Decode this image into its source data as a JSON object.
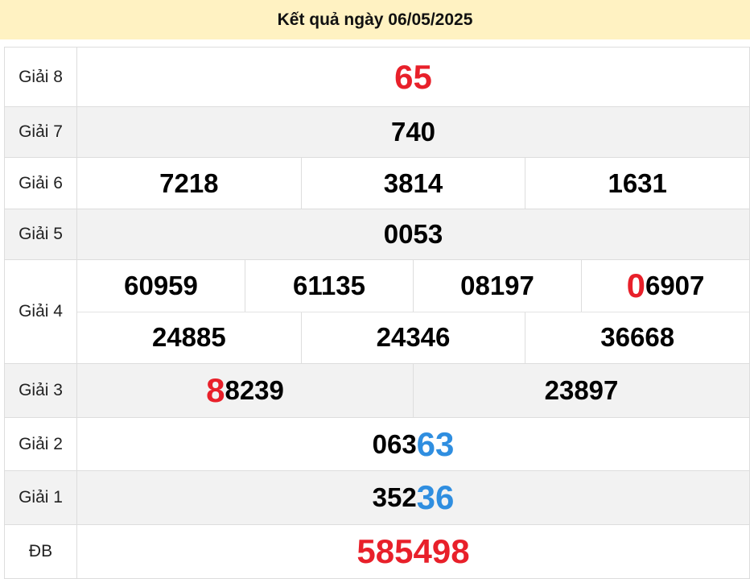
{
  "header": {
    "title": "Kết quả ngày 06/05/2025"
  },
  "colors": {
    "red": "#e8202a",
    "blue": "#2f8ee0",
    "black": "#000000",
    "header_bg": "#fff2c2"
  },
  "rows": [
    {
      "label": "Giải 8",
      "gray": false,
      "height": 73,
      "lines": [
        [
          [
            {
              "text": "65",
              "color": "red",
              "big": true
            }
          ]
        ]
      ]
    },
    {
      "label": "Giải 7",
      "gray": true,
      "height": 62,
      "lines": [
        [
          [
            {
              "text": "740",
              "color": "black"
            }
          ]
        ]
      ]
    },
    {
      "label": "Giải 6",
      "gray": false,
      "height": 63,
      "lines": [
        [
          [
            {
              "text": "7218",
              "color": "black"
            }
          ],
          [
            {
              "text": "3814",
              "color": "black"
            }
          ],
          [
            {
              "text": "1631",
              "color": "black"
            }
          ]
        ]
      ]
    },
    {
      "label": "Giải 5",
      "gray": true,
      "height": 62,
      "lines": [
        [
          [
            {
              "text": "0053",
              "color": "black"
            }
          ]
        ]
      ]
    },
    {
      "label": "Giải 4",
      "gray": false,
      "height": 128,
      "lines": [
        [
          [
            {
              "text": "60959",
              "color": "black"
            }
          ],
          [
            {
              "text": "61135",
              "color": "black"
            }
          ],
          [
            {
              "text": "08197",
              "color": "black"
            }
          ],
          [
            {
              "text": "0",
              "color": "red",
              "big": true
            },
            {
              "text": "6907",
              "color": "black"
            }
          ]
        ],
        [
          [
            {
              "text": "24885",
              "color": "black"
            }
          ],
          [
            {
              "text": "24346",
              "color": "black"
            }
          ],
          [
            {
              "text": "36668",
              "color": "black"
            }
          ]
        ]
      ]
    },
    {
      "label": "Giải 3",
      "gray": true,
      "height": 66,
      "lines": [
        [
          [
            {
              "text": "8",
              "color": "red",
              "big": true
            },
            {
              "text": "8239",
              "color": "black"
            }
          ],
          [
            {
              "text": "23897",
              "color": "black"
            }
          ]
        ]
      ]
    },
    {
      "label": "Giải 2",
      "gray": false,
      "height": 65,
      "lines": [
        [
          [
            {
              "text": "063",
              "color": "black"
            },
            {
              "text": "63",
              "color": "blue",
              "big": true
            }
          ]
        ]
      ]
    },
    {
      "label": "Giải 1",
      "gray": true,
      "height": 66,
      "lines": [
        [
          [
            {
              "text": "352",
              "color": "black"
            },
            {
              "text": "36",
              "color": "blue",
              "big": true
            }
          ]
        ]
      ]
    },
    {
      "label": "ĐB",
      "gray": false,
      "height": 66,
      "lines": [
        [
          [
            {
              "text": "585498",
              "color": "red",
              "big": true
            }
          ]
        ]
      ]
    }
  ]
}
